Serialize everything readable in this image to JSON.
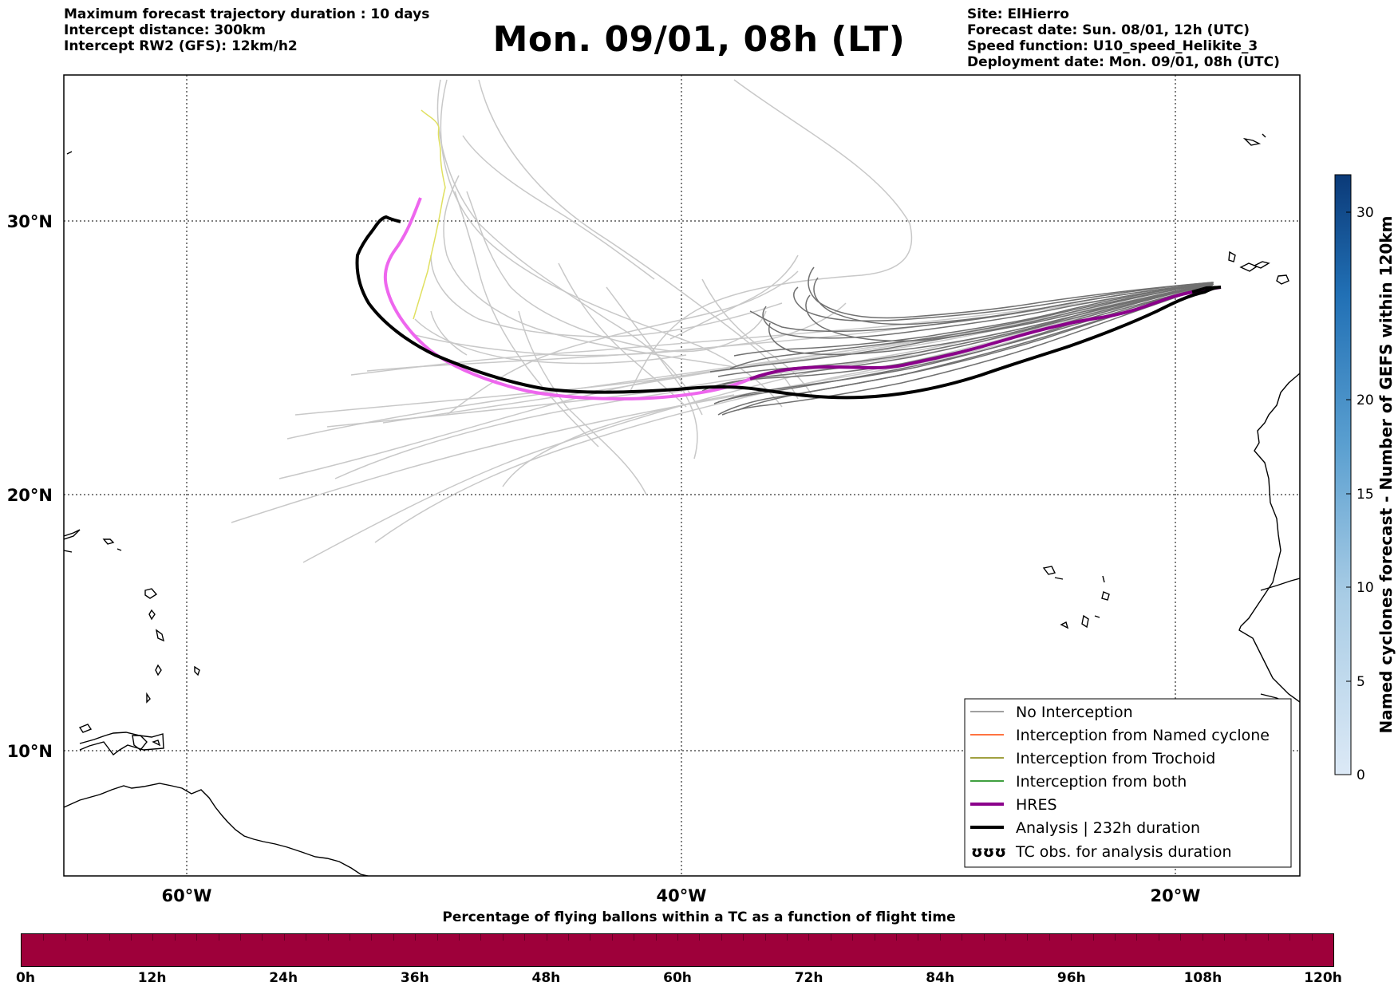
{
  "header": {
    "left_lines": [
      "Maximum forecast trajectory duration : 10 days",
      "Intercept distance: 300km",
      "Intercept RW2 (GFS):  12km/h2"
    ],
    "title": "Mon. 09/01, 08h (LT)",
    "right_lines": [
      "Site: ElHierro",
      "Forecast date: Sun. 08/01, 12h (UTC)",
      "Speed function: U10_speed_Helikite_3",
      "Deployment date: Mon. 09/01, 08h (UTC)"
    ]
  },
  "map": {
    "lat_labels": [
      "30°N",
      "20°N",
      "10°N"
    ],
    "lon_labels": [
      "60°W",
      "40°W",
      "20°W"
    ],
    "extent_lon": [
      -65,
      -15
    ],
    "extent_lat": [
      5,
      34.3
    ],
    "grid_style": "dotted",
    "colors": {
      "ensemble_light": "#c8c8c8",
      "no_interception": "#707070",
      "hres_early": "#ee66ee",
      "hres_late": "#8b008b",
      "analysis": "#000000",
      "trochoid": "#e0e060"
    }
  },
  "legend": {
    "position": "bottom-right",
    "items": [
      {
        "label": "No Interception",
        "color": "#808080",
        "style": "thin"
      },
      {
        "label": "Interception from Named cyclone",
        "color": "#ff4500",
        "style": "thin"
      },
      {
        "label": "Interception from Trochoid",
        "color": "#808000",
        "style": "thin"
      },
      {
        "label": "Interception from both",
        "color": "#008000",
        "style": "thin"
      },
      {
        "label": "HRES",
        "color": "#8b008b",
        "style": "thick"
      },
      {
        "label": "Analysis | 232h duration",
        "color": "#000000",
        "style": "thick"
      },
      {
        "label": "TC obs. for analysis duration",
        "color": "#000000",
        "style": "symbol",
        "symbol": "ʊʊʊ"
      }
    ]
  },
  "colorbar": {
    "label": "Named cyclones forecast - Number of GEFS within 120km",
    "ticks": [
      "0",
      "5",
      "10",
      "15",
      "20",
      "30"
    ],
    "range": [
      0,
      32
    ]
  },
  "percentage_bar": {
    "title": "Percentage of flying ballons within a TC as a function of flight time",
    "fill_color": "#9e003a",
    "ticks": [
      "0h",
      "12h",
      "24h",
      "36h",
      "48h",
      "60h",
      "72h",
      "84h",
      "96h",
      "108h",
      "120h"
    ]
  }
}
